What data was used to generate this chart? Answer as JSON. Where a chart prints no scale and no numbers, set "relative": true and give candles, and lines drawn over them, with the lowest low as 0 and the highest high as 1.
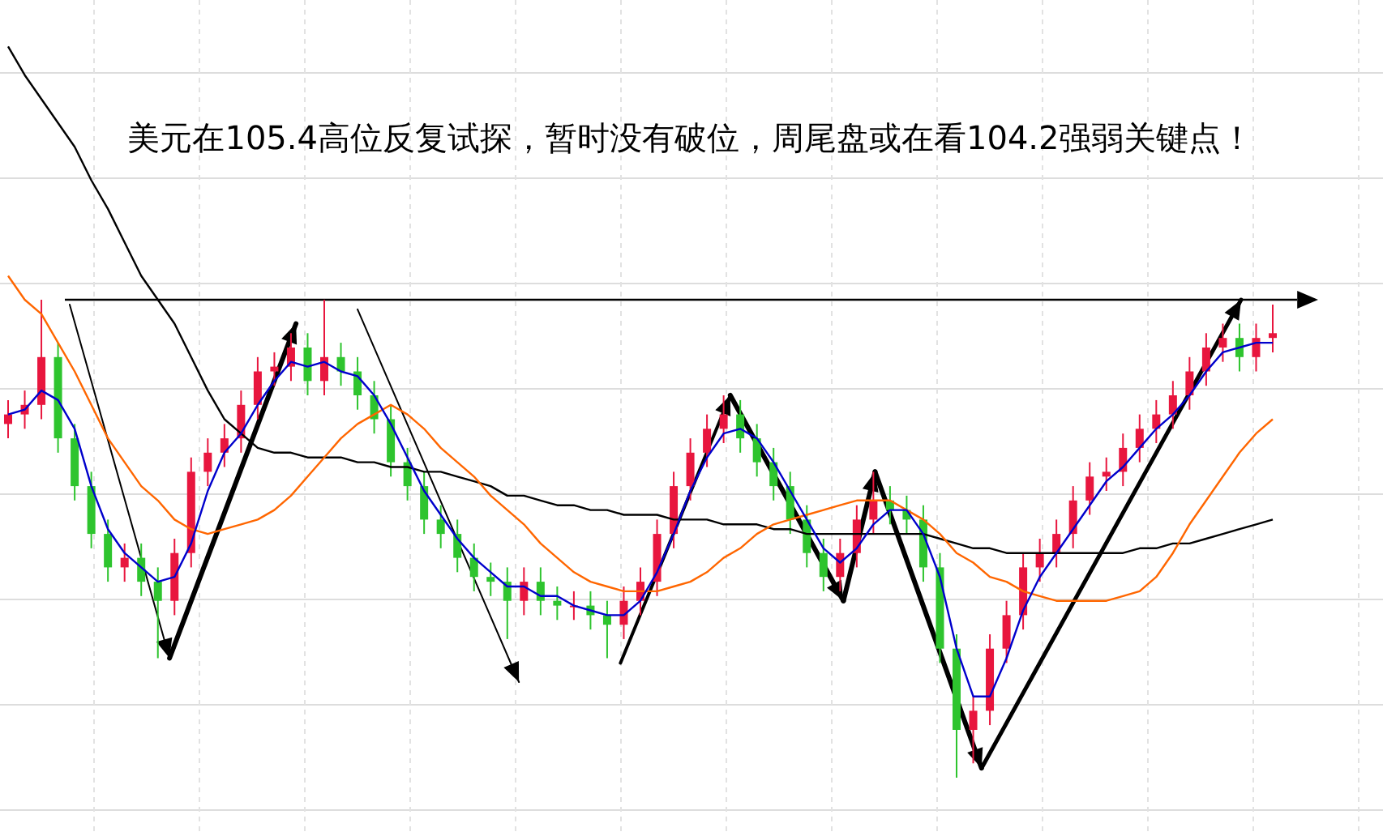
{
  "chart_data": {
    "type": "candlestick",
    "title": "美元在105.4高位反复试探，暂时没有破位，周尾盘或在看104.2强弱关键点！",
    "relative": true,
    "grid": true,
    "categories": [
      null,
      null,
      null,
      null,
      null,
      null,
      null,
      null,
      null,
      null,
      null,
      null,
      null,
      null,
      null,
      null,
      null,
      null,
      null,
      null,
      null,
      null,
      null,
      null,
      null,
      null,
      null,
      null,
      null,
      null,
      null,
      null,
      null,
      null,
      null,
      null,
      null,
      null,
      null,
      null,
      null,
      null,
      null,
      null,
      null,
      null,
      null,
      null,
      null,
      null,
      null,
      null,
      null,
      null,
      null,
      null,
      null,
      null,
      null,
      null,
      null,
      null,
      null,
      null,
      null,
      null,
      null,
      null,
      null,
      null,
      null,
      null,
      null,
      null,
      null,
      null,
      null
    ],
    "ohlc": [
      [
        0.74,
        0.79,
        0.71,
        0.76
      ],
      [
        0.76,
        0.81,
        0.73,
        0.78
      ],
      [
        0.78,
        1.0,
        0.75,
        0.88
      ],
      [
        0.88,
        0.91,
        0.68,
        0.71
      ],
      [
        0.71,
        0.74,
        0.58,
        0.61
      ],
      [
        0.61,
        0.64,
        0.48,
        0.51
      ],
      [
        0.51,
        0.54,
        0.41,
        0.44
      ],
      [
        0.44,
        0.49,
        0.41,
        0.46
      ],
      [
        0.46,
        0.49,
        0.38,
        0.41
      ],
      [
        0.41,
        0.44,
        0.25,
        0.37
      ],
      [
        0.37,
        0.5,
        0.34,
        0.47
      ],
      [
        0.47,
        0.67,
        0.44,
        0.64
      ],
      [
        0.64,
        0.71,
        0.61,
        0.68
      ],
      [
        0.68,
        0.74,
        0.65,
        0.71
      ],
      [
        0.71,
        0.81,
        0.68,
        0.78
      ],
      [
        0.78,
        0.88,
        0.75,
        0.85
      ],
      [
        0.85,
        0.89,
        0.82,
        0.86
      ],
      [
        0.86,
        0.93,
        0.83,
        0.9
      ],
      [
        0.9,
        0.93,
        0.8,
        0.83
      ],
      [
        0.83,
        1.0,
        0.8,
        0.88
      ],
      [
        0.88,
        0.91,
        0.82,
        0.85
      ],
      [
        0.85,
        0.88,
        0.77,
        0.8
      ],
      [
        0.8,
        0.83,
        0.72,
        0.75
      ],
      [
        0.75,
        0.78,
        0.63,
        0.66
      ],
      [
        0.66,
        0.69,
        0.58,
        0.61
      ],
      [
        0.61,
        0.64,
        0.51,
        0.54
      ],
      [
        0.54,
        0.57,
        0.48,
        0.51
      ],
      [
        0.51,
        0.54,
        0.43,
        0.46
      ],
      [
        0.46,
        0.49,
        0.39,
        0.42
      ],
      [
        0.42,
        0.45,
        0.38,
        0.41
      ],
      [
        0.41,
        0.44,
        0.29,
        0.37
      ],
      [
        0.37,
        0.44,
        0.34,
        0.41
      ],
      [
        0.41,
        0.44,
        0.34,
        0.37
      ],
      [
        0.37,
        0.4,
        0.33,
        0.36
      ],
      [
        0.36,
        0.39,
        0.33,
        0.36
      ],
      [
        0.36,
        0.39,
        0.31,
        0.34
      ],
      [
        0.34,
        0.37,
        0.25,
        0.32
      ],
      [
        0.32,
        0.4,
        0.29,
        0.37
      ],
      [
        0.37,
        0.44,
        0.34,
        0.41
      ],
      [
        0.41,
        0.54,
        0.38,
        0.51
      ],
      [
        0.51,
        0.64,
        0.48,
        0.61
      ],
      [
        0.61,
        0.71,
        0.58,
        0.68
      ],
      [
        0.68,
        0.76,
        0.65,
        0.73
      ],
      [
        0.73,
        0.8,
        0.7,
        0.76
      ],
      [
        0.76,
        0.79,
        0.68,
        0.71
      ],
      [
        0.71,
        0.74,
        0.63,
        0.66
      ],
      [
        0.66,
        0.69,
        0.58,
        0.61
      ],
      [
        0.61,
        0.64,
        0.51,
        0.54
      ],
      [
        0.54,
        0.57,
        0.44,
        0.47
      ],
      [
        0.47,
        0.5,
        0.39,
        0.42
      ],
      [
        0.42,
        0.5,
        0.39,
        0.47
      ],
      [
        0.47,
        0.57,
        0.44,
        0.54
      ],
      [
        0.54,
        0.64,
        0.51,
        0.58
      ],
      [
        0.58,
        0.61,
        0.53,
        0.56
      ],
      [
        0.56,
        0.59,
        0.51,
        0.54
      ],
      [
        0.54,
        0.57,
        0.41,
        0.44
      ],
      [
        0.44,
        0.47,
        0.24,
        0.27
      ],
      [
        0.27,
        0.3,
        0.0,
        0.1
      ],
      [
        0.1,
        0.17,
        0.03,
        0.14
      ],
      [
        0.14,
        0.3,
        0.11,
        0.27
      ],
      [
        0.27,
        0.37,
        0.24,
        0.34
      ],
      [
        0.34,
        0.47,
        0.31,
        0.44
      ],
      [
        0.44,
        0.5,
        0.41,
        0.47
      ],
      [
        0.47,
        0.54,
        0.44,
        0.51
      ],
      [
        0.51,
        0.61,
        0.48,
        0.58
      ],
      [
        0.58,
        0.66,
        0.55,
        0.63
      ],
      [
        0.63,
        0.67,
        0.6,
        0.64
      ],
      [
        0.64,
        0.72,
        0.61,
        0.69
      ],
      [
        0.69,
        0.76,
        0.66,
        0.73
      ],
      [
        0.73,
        0.79,
        0.7,
        0.76
      ],
      [
        0.76,
        0.83,
        0.73,
        0.8
      ],
      [
        0.8,
        0.88,
        0.77,
        0.85
      ],
      [
        0.85,
        0.93,
        0.82,
        0.9
      ],
      [
        0.9,
        0.95,
        0.87,
        0.92
      ],
      [
        0.92,
        0.95,
        0.85,
        0.88
      ],
      [
        0.88,
        0.95,
        0.85,
        0.92
      ],
      [
        0.92,
        0.99,
        0.89,
        0.93
      ]
    ],
    "series": [
      {
        "type": "line",
        "color": "#000000",
        "values": [
          1.53,
          1.47,
          1.42,
          1.37,
          1.32,
          1.25,
          1.19,
          1.12,
          1.05,
          1.0,
          0.95,
          0.88,
          0.81,
          0.75,
          0.72,
          0.69,
          0.68,
          0.68,
          0.67,
          0.67,
          0.67,
          0.66,
          0.66,
          0.65,
          0.65,
          0.64,
          0.64,
          0.63,
          0.62,
          0.61,
          0.59,
          0.59,
          0.58,
          0.57,
          0.57,
          0.56,
          0.56,
          0.55,
          0.55,
          0.55,
          0.54,
          0.54,
          0.54,
          0.53,
          0.53,
          0.53,
          0.52,
          0.52,
          0.51,
          0.51,
          0.51,
          0.51,
          0.51,
          0.51,
          0.51,
          0.51,
          0.5,
          0.49,
          0.48,
          0.48,
          0.47,
          0.47,
          0.47,
          0.47,
          0.47,
          0.47,
          0.47,
          0.47,
          0.48,
          0.48,
          0.49,
          0.49,
          0.5,
          0.51,
          0.52,
          0.53,
          0.54
        ]
      },
      {
        "type": "line",
        "color": "#ff6600",
        "values": [
          1.05,
          1.0,
          0.97,
          0.91,
          0.85,
          0.78,
          0.71,
          0.66,
          0.61,
          0.58,
          0.54,
          0.52,
          0.51,
          0.52,
          0.53,
          0.54,
          0.56,
          0.59,
          0.63,
          0.67,
          0.71,
          0.74,
          0.76,
          0.78,
          0.76,
          0.73,
          0.69,
          0.66,
          0.63,
          0.59,
          0.56,
          0.53,
          0.49,
          0.46,
          0.43,
          0.41,
          0.4,
          0.39,
          0.39,
          0.39,
          0.4,
          0.41,
          0.43,
          0.46,
          0.48,
          0.51,
          0.53,
          0.54,
          0.55,
          0.56,
          0.57,
          0.58,
          0.58,
          0.58,
          0.56,
          0.54,
          0.51,
          0.47,
          0.45,
          0.42,
          0.41,
          0.39,
          0.38,
          0.37,
          0.37,
          0.37,
          0.37,
          0.38,
          0.39,
          0.42,
          0.47,
          0.53,
          0.58,
          0.63,
          0.68,
          0.72,
          0.75
        ]
      },
      {
        "type": "line",
        "color": "#0000cc",
        "values": [
          0.76,
          0.77,
          0.81,
          0.79,
          0.73,
          0.61,
          0.52,
          0.47,
          0.44,
          0.41,
          0.42,
          0.49,
          0.6,
          0.68,
          0.72,
          0.78,
          0.83,
          0.87,
          0.86,
          0.87,
          0.85,
          0.84,
          0.8,
          0.74,
          0.67,
          0.6,
          0.55,
          0.5,
          0.46,
          0.43,
          0.4,
          0.4,
          0.38,
          0.38,
          0.36,
          0.35,
          0.34,
          0.34,
          0.37,
          0.43,
          0.51,
          0.6,
          0.67,
          0.72,
          0.73,
          0.71,
          0.66,
          0.6,
          0.54,
          0.48,
          0.45,
          0.48,
          0.53,
          0.56,
          0.56,
          0.51,
          0.42,
          0.27,
          0.17,
          0.17,
          0.25,
          0.35,
          0.42,
          0.47,
          0.52,
          0.57,
          0.62,
          0.65,
          0.69,
          0.73,
          0.76,
          0.8,
          0.85,
          0.89,
          0.9,
          0.91,
          0.91
        ]
      }
    ],
    "ref_lines": [
      {
        "axis": "y",
        "value": 1.0,
        "color": "#000000"
      }
    ]
  }
}
